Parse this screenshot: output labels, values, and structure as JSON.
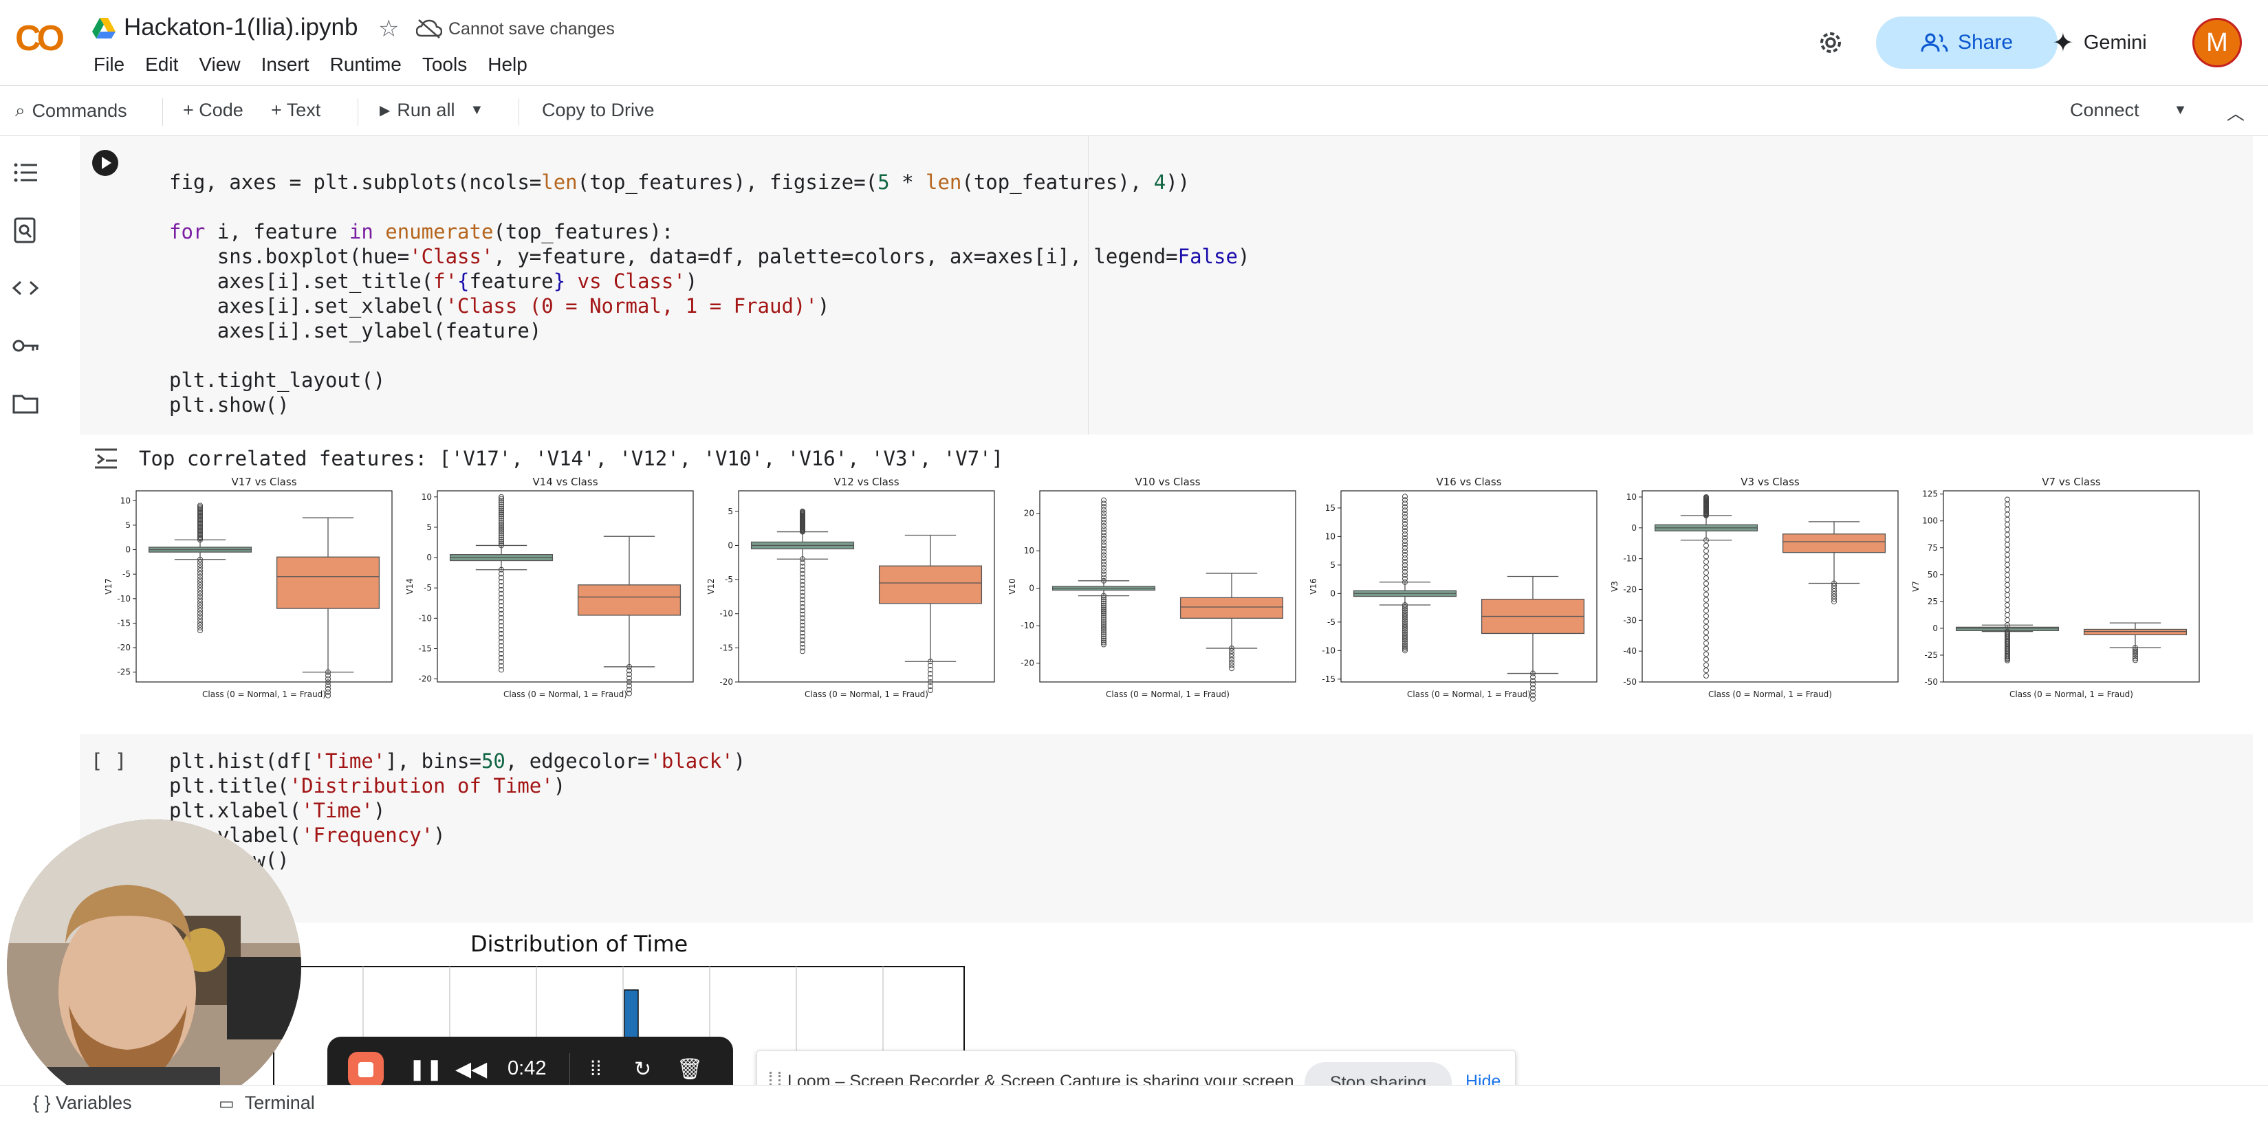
{
  "header": {
    "logo": "CO",
    "title": "Hackaton-1(Ilia).ipynb",
    "cannot_save": "Cannot save changes",
    "menu": [
      "File",
      "Edit",
      "View",
      "Insert",
      "Runtime",
      "Tools",
      "Help"
    ],
    "share_label": "Share",
    "gemini_label": "Gemini",
    "avatar_letter": "M"
  },
  "toolbar": {
    "commands": "Commands",
    "code": "+ Code",
    "text": "+ Text",
    "run_all": "Run all",
    "copy_drive": "Copy to Drive",
    "connect": "Connect"
  },
  "cell1": {
    "lines": [
      "fig, axes = plt.subplots(ncols=len(top_features), figsize=(5 * len(top_features), 4))",
      "",
      "for i, feature in enumerate(top_features):",
      "    sns.boxplot(hue='Class', y=feature, data=df, palette=colors, ax=axes[i], legend=False)",
      "    axes[i].set_title(f'{feature} vs Class')",
      "    axes[i].set_xlabel('Class (0 = Normal, 1 = Fraud)')",
      "    axes[i].set_ylabel(feature)",
      "",
      "plt.tight_layout()",
      "plt.show()"
    ],
    "output": "Top correlated features: ['V17', 'V14', 'V12', 'V10', 'V16', 'V3', 'V7']"
  },
  "chart_data": [
    {
      "type": "box",
      "title": "V17 vs Class",
      "ylabel": "V17",
      "xlabel": "Class (0 = Normal, 1 = Fraud)",
      "ylim": [
        -27,
        12
      ],
      "yticks": [
        10,
        5,
        0,
        -5,
        -10,
        -15,
        -20,
        -25
      ],
      "series": [
        {
          "name": "0",
          "q1": -0.5,
          "median": 0,
          "q3": 0.5,
          "whisker_low": -2,
          "whisker_high": 2,
          "outlier_min": -16.5,
          "outlier_max": 9
        },
        {
          "name": "1",
          "q1": -12,
          "median": -5.5,
          "q3": -1.5,
          "whisker_low": -25,
          "whisker_high": 6.5
        }
      ]
    },
    {
      "type": "box",
      "title": "V14 vs Class",
      "ylabel": "V14",
      "xlabel": "Class (0 = Normal, 1 = Fraud)",
      "ylim": [
        -20.5,
        11
      ],
      "yticks": [
        10,
        5,
        0,
        -5,
        -10,
        -15,
        -20
      ],
      "series": [
        {
          "name": "0",
          "q1": -0.5,
          "median": 0,
          "q3": 0.5,
          "whisker_low": -2,
          "whisker_high": 2,
          "outlier_min": -18.5,
          "outlier_max": 10
        },
        {
          "name": "1",
          "q1": -9.5,
          "median": -6.5,
          "q3": -4.5,
          "whisker_low": -18,
          "whisker_high": 3.5
        }
      ]
    },
    {
      "type": "box",
      "title": "V12 vs Class",
      "ylabel": "V12",
      "xlabel": "Class (0 = Normal, 1 = Fraud)",
      "ylim": [
        -20,
        8
      ],
      "yticks": [
        5,
        0,
        -5,
        -10,
        -15,
        -20
      ],
      "series": [
        {
          "name": "0",
          "q1": -0.5,
          "median": 0,
          "q3": 0.5,
          "whisker_low": -2,
          "whisker_high": 2,
          "outlier_min": -15.5,
          "outlier_max": 5
        },
        {
          "name": "1",
          "q1": -8.5,
          "median": -5.5,
          "q3": -3,
          "whisker_low": -17,
          "whisker_high": 1.5
        }
      ]
    },
    {
      "type": "box",
      "title": "V10 vs Class",
      "ylabel": "V10",
      "xlabel": "Class (0 = Normal, 1 = Fraud)",
      "ylim": [
        -25,
        26
      ],
      "yticks": [
        20,
        10,
        0,
        -10,
        -20
      ],
      "series": [
        {
          "name": "0",
          "q1": -0.5,
          "median": 0,
          "q3": 0.5,
          "whisker_low": -2,
          "whisker_high": 2,
          "outlier_min": -15,
          "outlier_max": 23.5
        },
        {
          "name": "1",
          "q1": -8,
          "median": -5,
          "q3": -2.5,
          "whisker_low": -16,
          "whisker_high": 4
        }
      ]
    },
    {
      "type": "box",
      "title": "V16 vs Class",
      "ylabel": "V16",
      "xlabel": "Class (0 = Normal, 1 = Fraud)",
      "ylim": [
        -15.5,
        18
      ],
      "yticks": [
        15,
        10,
        5,
        0,
        -5,
        -10,
        -15
      ],
      "series": [
        {
          "name": "0",
          "q1": -0.5,
          "median": 0,
          "q3": 0.5,
          "whisker_low": -2,
          "whisker_high": 2,
          "outlier_min": -10,
          "outlier_max": 17
        },
        {
          "name": "1",
          "q1": -7,
          "median": -4,
          "q3": -1,
          "whisker_low": -14,
          "whisker_high": 3
        }
      ]
    },
    {
      "type": "box",
      "title": "V3 vs Class",
      "ylabel": "V3",
      "xlabel": "Class (0 = Normal, 1 = Fraud)",
      "ylim": [
        -50,
        12
      ],
      "yticks": [
        10,
        0,
        -10,
        -20,
        -30,
        -40,
        -50
      ],
      "series": [
        {
          "name": "0",
          "q1": -1,
          "median": 0,
          "q3": 1,
          "whisker_low": -4,
          "whisker_high": 4,
          "outlier_min": -48,
          "outlier_max": 10
        },
        {
          "name": "1",
          "q1": -8,
          "median": -4.5,
          "q3": -2,
          "whisker_low": -18,
          "whisker_high": 2
        }
      ]
    },
    {
      "type": "box",
      "title": "V7 vs Class",
      "ylabel": "V7",
      "xlabel": "Class (0 = Normal, 1 = Fraud)",
      "ylim": [
        -50,
        128
      ],
      "yticks": [
        125,
        100,
        75,
        50,
        25,
        0,
        -25,
        -50
      ],
      "series": [
        {
          "name": "0",
          "q1": -1,
          "median": 0,
          "q3": 1,
          "whisker_low": -3,
          "whisker_high": 3,
          "outlier_min": -30,
          "outlier_max": 120
        },
        {
          "name": "1",
          "q1": -6,
          "median": -3,
          "q3": -1,
          "whisker_low": -18,
          "whisker_high": 5
        }
      ]
    }
  ],
  "cell2": {
    "bracket": "[ ]",
    "lines": [
      "plt.hist(df['Time'], bins=50, edgecolor='black')",
      "plt.title('Distribution of Time')",
      "plt.xlabel('Time')",
      "plt.ylabel('Frequency')",
      "plt.show()"
    ],
    "hist_title": "Distribution of Time"
  },
  "recorder": {
    "time": "0:42"
  },
  "loom": {
    "message": "Loom – Screen Recorder & Screen Capture is sharing your screen.",
    "stop_label": "Stop sharing",
    "hide_label": "Hide"
  },
  "status": {
    "variables": "{ } Variables",
    "terminal": "Terminal"
  },
  "colors": {
    "normal_box": "#7a9e8e",
    "fraud_box": "#e8956e",
    "accent": "#0b57d0"
  }
}
